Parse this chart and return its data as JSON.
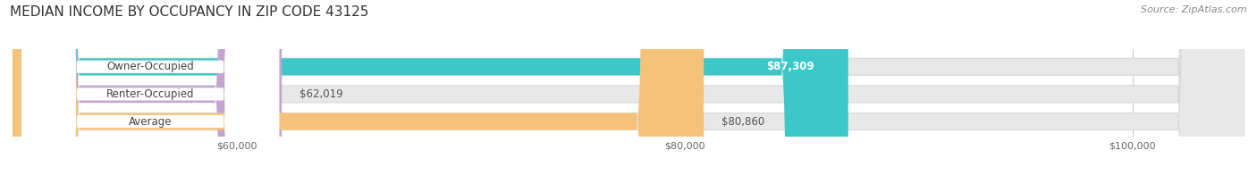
{
  "title": "MEDIAN INCOME BY OCCUPANCY IN ZIP CODE 43125",
  "source": "Source: ZipAtlas.com",
  "categories": [
    "Owner-Occupied",
    "Renter-Occupied",
    "Average"
  ],
  "values": [
    87309,
    62019,
    80860
  ],
  "bar_colors": [
    "#3CC8C8",
    "#C4A4D0",
    "#F5C27A"
  ],
  "bar_labels": [
    "$87,309",
    "$62,019",
    "$80,860"
  ],
  "xlim": [
    50000,
    105000
  ],
  "xmin": 50000,
  "xticks": [
    60000,
    80000,
    100000
  ],
  "xtick_labels": [
    "$60,000",
    "$80,000",
    "$100,000"
  ],
  "background_color": "#ffffff",
  "bar_track_color": "#e8e8e8",
  "bar_track_border": "#d8d8d8",
  "title_fontsize": 11,
  "source_fontsize": 8,
  "label_fontsize": 8.5,
  "tick_fontsize": 8,
  "label_inside_color": "#ffffff",
  "label_outside_color": "#555555"
}
